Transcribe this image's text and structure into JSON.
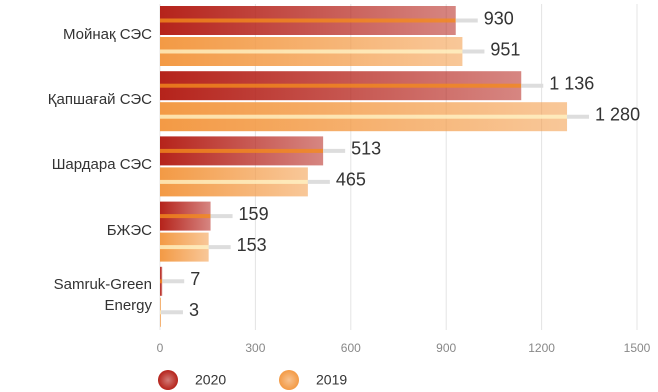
{
  "chart_data": {
    "type": "bar",
    "orientation": "horizontal",
    "categories": [
      "Мойнақ СЭС",
      "Қапшағай СЭС",
      "Шардара СЭС",
      "БЖЭС",
      "Samruk-Green Energy"
    ],
    "series": [
      {
        "name": "2020",
        "color": "#b5231b",
        "values": [
          930,
          1136,
          513,
          159,
          7
        ],
        "value_labels": [
          "930",
          "1 136",
          "513",
          "159",
          "7"
        ]
      },
      {
        "name": "2019",
        "color": "#f39a45",
        "values": [
          951,
          1280,
          465,
          153,
          3
        ],
        "value_labels": [
          "951",
          "1 280",
          "465",
          "153",
          "3"
        ]
      }
    ],
    "xlim": [
      0,
      1500
    ],
    "xticks": [
      0,
      300,
      600,
      900,
      1200,
      1500
    ],
    "grid": true,
    "legend": "bottom"
  }
}
